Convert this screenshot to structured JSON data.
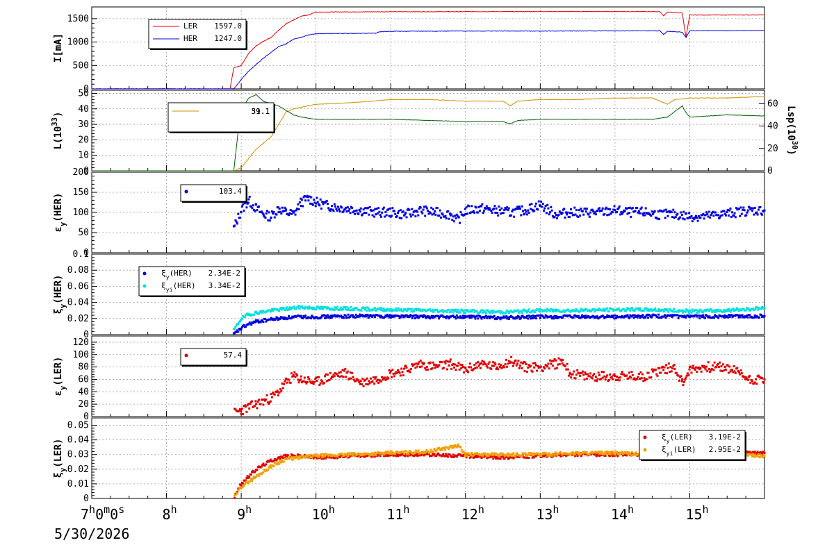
{
  "chart_data": [
    {
      "type": "line",
      "ylabel": "I[mA]",
      "ylim": [
        0,
        1750
      ],
      "yticks": [
        0,
        500,
        1000,
        1500
      ],
      "grid": true,
      "legend": "top-left",
      "series": [
        {
          "name": "LER",
          "legend_value": "1597.0",
          "color": "#e00000",
          "x": [
            7,
            8.85,
            8.9,
            9.0,
            9.1,
            9.2,
            9.3,
            9.4,
            9.5,
            9.6,
            9.7,
            9.8,
            9.9,
            10.0,
            10.5,
            11.0,
            12.0,
            13.0,
            14.0,
            14.6,
            14.65,
            14.7,
            14.9,
            14.95,
            15.0,
            15.1,
            15.5,
            16.0
          ],
          "y": [
            0,
            0,
            450,
            500,
            760,
            920,
            1020,
            1100,
            1250,
            1390,
            1470,
            1550,
            1580,
            1640,
            1645,
            1648,
            1650,
            1652,
            1652,
            1650,
            1560,
            1640,
            1620,
            1100,
            1580,
            1578,
            1577,
            1580
          ]
        },
        {
          "name": "HER",
          "legend_value": "1247.0",
          "color": "#0000e0",
          "x": [
            7,
            8.9,
            9.0,
            9.1,
            9.2,
            9.3,
            9.4,
            9.5,
            9.6,
            9.7,
            9.8,
            9.9,
            10.0,
            10.5,
            10.8,
            10.85,
            11.0,
            12.0,
            13.0,
            14.0,
            14.6,
            14.65,
            14.7,
            14.9,
            14.95,
            15.0,
            15.1,
            15.5,
            16.0
          ],
          "y": [
            0,
            0,
            200,
            380,
            520,
            660,
            780,
            900,
            960,
            1060,
            1100,
            1150,
            1180,
            1185,
            1190,
            1220,
            1230,
            1235,
            1235,
            1238,
            1240,
            1160,
            1230,
            1210,
            1100,
            1240,
            1242,
            1243,
            1245
          ]
        }
      ]
    },
    {
      "type": "line",
      "ylabel": "L(10^33)",
      "ylabel_right": "Lsp(10^30)",
      "ylim": [
        0,
        52
      ],
      "yticks": [
        0,
        10,
        20,
        30,
        40,
        50
      ],
      "ylim_right": [
        0,
        72
      ],
      "yticks_right": [
        0,
        20,
        40,
        60
      ],
      "grid": true,
      "legend": "top-left",
      "legend_value": "51.1",
      "legend_value_overlap": "39.1",
      "series": [
        {
          "color": "#d09000",
          "axis": "left",
          "x": [
            8.9,
            9.0,
            9.05,
            9.1,
            9.2,
            9.3,
            9.4,
            9.5,
            9.6,
            9.7,
            9.8,
            9.9,
            10.0,
            10.5,
            11.0,
            11.5,
            12.0,
            12.5,
            12.6,
            12.7,
            13.0,
            13.5,
            14.0,
            14.5,
            14.7,
            14.8,
            15.0,
            15.5,
            16.0
          ],
          "y": [
            0,
            2,
            5,
            8,
            14,
            18,
            22,
            30,
            38,
            40,
            41,
            42,
            43,
            44,
            46,
            46,
            45,
            45,
            42,
            45,
            46,
            46,
            47,
            47,
            43,
            46,
            47,
            47,
            48
          ]
        },
        {
          "color": "#006000",
          "axis": "right",
          "x": [
            8.9,
            8.95,
            9.0,
            9.1,
            9.2,
            9.3,
            9.4,
            9.5,
            9.6,
            9.7,
            9.8,
            10.0,
            10.5,
            11.0,
            11.5,
            12.0,
            12.5,
            12.6,
            12.7,
            13.0,
            13.5,
            14.0,
            14.5,
            14.7,
            14.9,
            14.95,
            15.0,
            15.5,
            16.0
          ],
          "y": [
            0,
            30,
            55,
            65,
            68,
            62,
            60,
            58,
            54,
            50,
            48,
            46,
            46,
            46,
            45,
            44,
            44,
            42,
            45,
            46,
            46,
            46,
            46,
            48,
            58,
            52,
            48,
            50,
            49
          ]
        }
      ]
    },
    {
      "type": "scatter",
      "ylabel": "εy(HER)",
      "ylim": [
        0,
        200
      ],
      "yticks": [
        0,
        50,
        100,
        150,
        200
      ],
      "grid": true,
      "legend": "top-left",
      "series": [
        {
          "legend_value": "103.4",
          "color": "#0000e0",
          "x": [
            8.9,
            9.0,
            9.1,
            9.2,
            9.3,
            9.4,
            9.5,
            9.6,
            9.7,
            9.8,
            9.9,
            10.0,
            10.2,
            10.4,
            10.6,
            10.8,
            11.0,
            11.2,
            11.4,
            11.6,
            11.8,
            11.9,
            12.0,
            12.2,
            12.4,
            12.6,
            12.8,
            13.0,
            13.2,
            13.4,
            13.6,
            13.8,
            14.0,
            14.2,
            14.4,
            14.6,
            14.8,
            15.0,
            15.2,
            15.4,
            15.6,
            15.8,
            16.0
          ],
          "y": [
            60,
            105,
            130,
            110,
            95,
            90,
            110,
            100,
            95,
            125,
            135,
            125,
            115,
            110,
            105,
            100,
            100,
            95,
            105,
            100,
            95,
            80,
            105,
            110,
            105,
            100,
            105,
            120,
            95,
            100,
            100,
            100,
            105,
            100,
            100,
            95,
            95,
            90,
            90,
            95,
            100,
            105,
            105
          ]
        }
      ]
    },
    {
      "type": "scatter",
      "ylabel": "ξy(HER)",
      "ylim": [
        0,
        0.1
      ],
      "yticks": [
        0,
        0.02,
        0.04,
        0.06,
        0.08,
        0.1
      ],
      "ytick_labels": [
        "0",
        "0.02",
        "0.04",
        "0.06",
        "0.08",
        "0.1"
      ],
      "grid": true,
      "legend": "top-left",
      "series": [
        {
          "name": "ξy(HER)",
          "legend_value": "2.34E-2",
          "color": "#0000e0",
          "x": [
            8.9,
            9.0,
            9.1,
            9.2,
            9.4,
            9.6,
            9.8,
            10.0,
            10.5,
            11.0,
            11.5,
            12.0,
            12.5,
            13.0,
            13.5,
            14.0,
            14.5,
            15.0,
            15.5,
            16.0
          ],
          "y": [
            0,
            0.008,
            0.013,
            0.016,
            0.019,
            0.021,
            0.022,
            0.022,
            0.023,
            0.023,
            0.022,
            0.022,
            0.021,
            0.022,
            0.022,
            0.022,
            0.023,
            0.022,
            0.023,
            0.023
          ]
        },
        {
          "name": "ξyi(HER)",
          "legend_value": "3.34E-2",
          "color": "#00e0e0",
          "x": [
            8.9,
            9.0,
            9.1,
            9.2,
            9.4,
            9.6,
            9.8,
            10.0,
            10.5,
            11.0,
            11.5,
            12.0,
            12.5,
            13.0,
            13.5,
            14.0,
            14.5,
            15.0,
            15.5,
            16.0
          ],
          "y": [
            0.005,
            0.02,
            0.025,
            0.027,
            0.03,
            0.032,
            0.034,
            0.033,
            0.032,
            0.031,
            0.03,
            0.029,
            0.028,
            0.03,
            0.03,
            0.031,
            0.031,
            0.029,
            0.03,
            0.033
          ]
        }
      ]
    },
    {
      "type": "scatter",
      "ylabel": "εy(LER)",
      "ylim": [
        0,
        130
      ],
      "yticks": [
        0,
        20,
        40,
        60,
        80,
        100,
        120
      ],
      "grid": true,
      "legend": "top-left",
      "series": [
        {
          "legend_value": "57.4",
          "color": "#e00000",
          "x": [
            8.9,
            9.0,
            9.2,
            9.4,
            9.5,
            9.6,
            9.7,
            9.8,
            10.0,
            10.2,
            10.4,
            10.6,
            10.8,
            11.0,
            11.2,
            11.4,
            11.6,
            11.8,
            12.0,
            12.2,
            12.4,
            12.6,
            12.8,
            13.0,
            13.2,
            13.3,
            13.4,
            13.6,
            13.8,
            14.0,
            14.2,
            14.4,
            14.6,
            14.8,
            14.9,
            15.0,
            15.2,
            15.4,
            15.6,
            15.8,
            16.0
          ],
          "y": [
            5,
            10,
            20,
            30,
            40,
            55,
            65,
            60,
            55,
            65,
            70,
            55,
            60,
            70,
            75,
            85,
            80,
            85,
            75,
            85,
            80,
            90,
            80,
            80,
            85,
            90,
            70,
            65,
            65,
            65,
            65,
            65,
            75,
            80,
            55,
            75,
            80,
            80,
            75,
            60,
            60
          ]
        }
      ]
    },
    {
      "type": "scatter",
      "ylabel": "ξy(LER)",
      "ylim": [
        0,
        0.055
      ],
      "yticks": [
        0,
        0.01,
        0.02,
        0.03,
        0.04,
        0.05
      ],
      "ytick_labels": [
        "0",
        "0.01",
        "0.02",
        "0.03",
        "0.04",
        "0.05"
      ],
      "grid": true,
      "legend": "top-right",
      "series": [
        {
          "name": "ξy(LER)",
          "legend_value": "3.19E-2",
          "color": "#e00000",
          "x": [
            8.9,
            9.0,
            9.2,
            9.4,
            9.6,
            9.8,
            10.0,
            10.5,
            11.0,
            11.5,
            12.0,
            12.5,
            13.0,
            13.5,
            14.0,
            14.5,
            15.0,
            15.5,
            16.0
          ],
          "y": [
            0,
            0.01,
            0.02,
            0.026,
            0.029,
            0.029,
            0.028,
            0.029,
            0.03,
            0.03,
            0.029,
            0.028,
            0.029,
            0.03,
            0.03,
            0.03,
            0.031,
            0.031,
            0.031
          ]
        },
        {
          "name": "ξyi(LER)",
          "legend_value": "2.95E-2",
          "color": "#f0a000",
          "x": [
            8.9,
            9.0,
            9.2,
            9.4,
            9.6,
            9.8,
            10.0,
            10.5,
            11.0,
            11.5,
            11.9,
            12.0,
            12.5,
            13.0,
            13.5,
            14.0,
            14.5,
            15.0,
            15.5,
            16.0
          ],
          "y": [
            0,
            0.008,
            0.015,
            0.022,
            0.027,
            0.028,
            0.029,
            0.03,
            0.031,
            0.032,
            0.036,
            0.03,
            0.03,
            0.03,
            0.031,
            0.031,
            0.03,
            0.03,
            0.031,
            0.029
          ]
        }
      ]
    }
  ],
  "x_axis": {
    "range": [
      7,
      16
    ],
    "ticks": [
      {
        "x": 7,
        "base": "7",
        "sup": "h",
        "rest": "0",
        "sup2": "m",
        "rest2": "0",
        "sup3": "s"
      },
      {
        "x": 8,
        "base": "8",
        "sup": "h"
      },
      {
        "x": 9,
        "base": "9",
        "sup": "h"
      },
      {
        "x": 10,
        "base": "10",
        "sup": "h"
      },
      {
        "x": 11,
        "base": "11",
        "sup": "h"
      },
      {
        "x": 12,
        "base": "12",
        "sup": "h"
      },
      {
        "x": 13,
        "base": "13",
        "sup": "h"
      },
      {
        "x": 14,
        "base": "14",
        "sup": "h"
      },
      {
        "x": 15,
        "base": "15",
        "sup": "h"
      }
    ],
    "date": "5/30/2026"
  }
}
